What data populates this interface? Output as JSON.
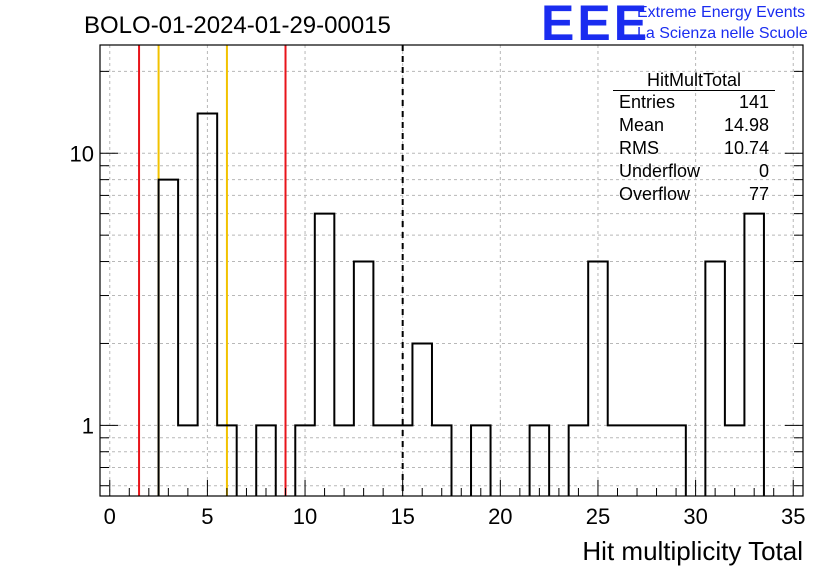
{
  "chart_data": {
    "type": "bar",
    "title": "BOLO-01-2024-01-29-00015",
    "xlabel": "Hit multiplicity Total",
    "ylabel": "",
    "xlim": [
      -0.5,
      35.5
    ],
    "ylim": [
      0.55,
      25
    ],
    "log_y": true,
    "grid": true,
    "bin_width": 1,
    "x": [
      0,
      1,
      2,
      3,
      4,
      5,
      6,
      7,
      8,
      9,
      10,
      11,
      12,
      13,
      14,
      15,
      16,
      17,
      18,
      19,
      20,
      21,
      22,
      23,
      24,
      25,
      26,
      27,
      28,
      29,
      30,
      31,
      32,
      33,
      34,
      35
    ],
    "values": [
      0,
      0,
      0,
      8,
      1,
      14,
      1,
      0,
      1,
      0,
      1,
      6,
      1,
      4,
      1,
      1,
      2,
      1,
      0,
      1,
      0,
      0,
      1,
      0,
      1,
      4,
      1,
      1,
      1,
      1,
      0,
      4,
      1,
      6,
      0,
      0
    ],
    "x_ticks": [
      0,
      5,
      10,
      15,
      20,
      25,
      30,
      35
    ],
    "y_ticks": [
      1,
      10
    ],
    "vertical_lines": [
      {
        "x": 1.5,
        "color": "#e8141a",
        "style": "solid"
      },
      {
        "x": 2.5,
        "color": "#f2c200",
        "style": "solid"
      },
      {
        "x": 6,
        "color": "#f2c200",
        "style": "solid"
      },
      {
        "x": 9,
        "color": "#e8141a",
        "style": "solid"
      },
      {
        "x": 15,
        "color": "#000000",
        "style": "dashed"
      }
    ]
  },
  "logo": {
    "mark": "EEE",
    "line1": "Extreme Energy Events",
    "line2": "La Scienza nelle Scuole",
    "color": "#1a2cf0"
  },
  "stats": {
    "name": "HitMultTotal",
    "rows": [
      {
        "label": "Entries",
        "value": "141"
      },
      {
        "label": "Mean",
        "value": "14.98"
      },
      {
        "label": "RMS",
        "value": "10.74"
      },
      {
        "label": "Underflow",
        "value": "0"
      },
      {
        "label": "Overflow",
        "value": "77"
      }
    ]
  }
}
